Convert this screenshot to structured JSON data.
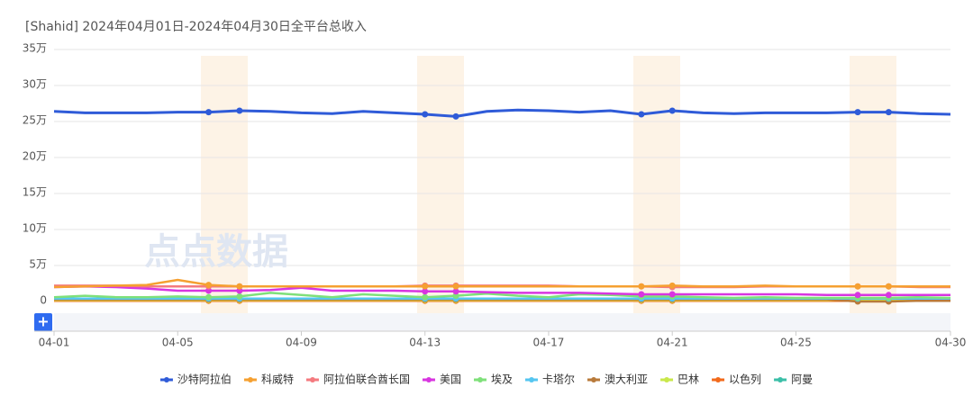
{
  "chart_data": {
    "type": "line",
    "title": "[Shahid]  2024年04月01日-2024年04月30日全平台总收入",
    "watermark": "点点数据",
    "zoom_button": "+",
    "categories": [
      "04-01",
      null,
      null,
      null,
      "04-05",
      null,
      null,
      null,
      "04-09",
      null,
      null,
      null,
      "04-13",
      null,
      null,
      null,
      "04-17",
      null,
      null,
      null,
      "04-21",
      null,
      null,
      null,
      "04-25",
      null,
      null,
      null,
      null,
      "04-30"
    ],
    "ylim": [
      0,
      350000
    ],
    "yticks": [
      0,
      {
        "value": 50000,
        "label": "5万"
      },
      {
        "value": 100000,
        "label": "10万"
      },
      {
        "value": 150000,
        "label": "15万"
      },
      {
        "value": 200000,
        "label": "20万"
      },
      {
        "value": 250000,
        "label": "25万"
      },
      {
        "value": 300000,
        "label": "30万"
      },
      {
        "value": 350000,
        "label": "35万"
      }
    ],
    "grid": true,
    "legend": "bottom",
    "series": [
      {
        "name": "沙特阿拉伯",
        "color": "#2f5bd8",
        "values": [
          264000,
          262000,
          262000,
          262000,
          263000,
          263000,
          265000,
          264000,
          262000,
          261000,
          264000,
          262000,
          260000,
          257000,
          264000,
          266000,
          265000,
          263000,
          265000,
          260000,
          265000,
          262000,
          261000,
          262000,
          262000,
          262000,
          263000,
          263000,
          261000,
          260000
        ]
      },
      {
        "name": "科威特",
        "color": "#f5a031",
        "values": [
          20000,
          21000,
          22000,
          23000,
          30000,
          23000,
          21000,
          21000,
          21000,
          21000,
          21000,
          21000,
          21000,
          21000,
          21000,
          21000,
          21000,
          21000,
          21000,
          21000,
          22000,
          21000,
          21000,
          22000,
          21000,
          21000,
          21000,
          21000,
          21000,
          21000
        ]
      },
      {
        "name": "阿拉伯联合酋长国",
        "color": "#f47a7f",
        "values": [
          22000,
          22000,
          22000,
          21000,
          21000,
          21000,
          21000,
          21000,
          21000,
          21000,
          21000,
          21000,
          22000,
          22000,
          22000,
          22000,
          22000,
          21000,
          21000,
          21000,
          20000,
          20000,
          20000,
          21000,
          21000,
          21000,
          21000,
          21000,
          20000,
          20000
        ]
      },
      {
        "name": "美国",
        "color": "#d835e0",
        "values": [
          20000,
          21000,
          20000,
          18000,
          15000,
          15000,
          15000,
          16000,
          19000,
          15000,
          15000,
          15000,
          14000,
          14000,
          13000,
          12000,
          12000,
          12000,
          11000,
          10000,
          10000,
          10000,
          10000,
          10000,
          10000,
          9000,
          9000,
          9000,
          9000,
          9000
        ]
      },
      {
        "name": "埃及",
        "color": "#7fe07a",
        "values": [
          6000,
          8000,
          6000,
          6000,
          7000,
          6000,
          7000,
          12000,
          9000,
          6000,
          10000,
          8000,
          6000,
          8000,
          11000,
          8000,
          6000,
          10000,
          9000,
          7000,
          7000,
          6000,
          5000,
          6000,
          5000,
          5000,
          5000,
          5000,
          6000,
          5000
        ]
      },
      {
        "name": "卡塔尔",
        "color": "#55c6f0",
        "values": [
          4000,
          4000,
          4000,
          4000,
          4000,
          4000,
          4000,
          4000,
          4000,
          4000,
          4000,
          4000,
          4000,
          4000,
          4000,
          4000,
          4000,
          4000,
          4000,
          4000,
          4000,
          4000,
          4000,
          4000,
          4000,
          4000,
          4000,
          4000,
          4000,
          4000
        ]
      },
      {
        "name": "澳大利亚",
        "color": "#b87a3a",
        "values": [
          3000,
          3000,
          3000,
          3000,
          3000,
          3000,
          3000,
          3000,
          3000,
          3000,
          3000,
          3000,
          3000,
          3000,
          3000,
          3000,
          3000,
          3000,
          3000,
          3000,
          3000,
          3000,
          3000,
          3000,
          3000,
          3000,
          0,
          0,
          1000,
          1000
        ]
      },
      {
        "name": "巴林",
        "color": "#c9e84a",
        "values": [
          2000,
          2000,
          2000,
          2000,
          2000,
          2000,
          2000,
          2000,
          2000,
          2000,
          2000,
          2000,
          2000,
          2000,
          2000,
          2000,
          2000,
          2000,
          2000,
          2000,
          2000,
          2000,
          2000,
          2000,
          2000,
          2000,
          2000,
          2000,
          2000,
          2000
        ]
      },
      {
        "name": "以色列",
        "color": "#f26a1b",
        "values": [
          1000,
          1000,
          1000,
          1000,
          1000,
          1000,
          1000,
          1000,
          1000,
          1000,
          1000,
          1000,
          1000,
          1000,
          1000,
          1000,
          1000,
          1000,
          1000,
          1000,
          1000,
          1000,
          1000,
          1000,
          1000,
          1000,
          1000,
          1000,
          1000,
          1000
        ]
      },
      {
        "name": "阿曼",
        "color": "#3bbfa8",
        "values": [
          4000,
          4000,
          4000,
          3000,
          3000,
          2000,
          2000,
          3000,
          3000,
          3000,
          3000,
          3000,
          2000,
          2000,
          3000,
          3000,
          3000,
          3000,
          3000,
          3000,
          3000,
          3000,
          3000,
          3000,
          3000,
          2000,
          2000,
          2000,
          3000,
          3000
        ]
      }
    ]
  }
}
